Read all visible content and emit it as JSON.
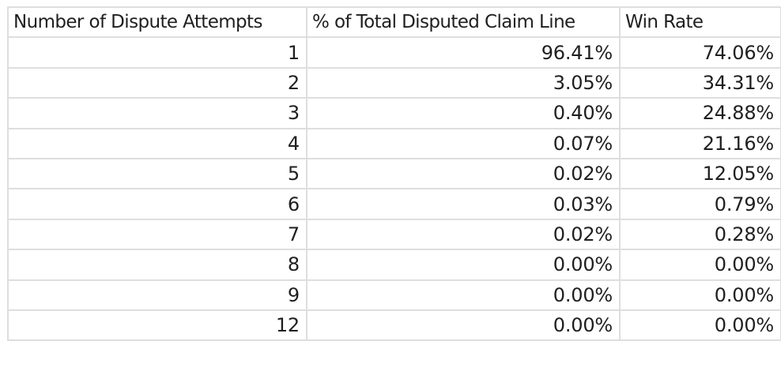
{
  "chart_data": {
    "type": "table",
    "columns": [
      "Number of Dispute Attempts",
      "% of Total Disputed Claim Line",
      "Win Rate"
    ],
    "rows": [
      [
        "1",
        "96.41%",
        "74.06%"
      ],
      [
        "2",
        "3.05%",
        "34.31%"
      ],
      [
        "3",
        "0.40%",
        "24.88%"
      ],
      [
        "4",
        "0.07%",
        "21.16%"
      ],
      [
        "5",
        "0.02%",
        "12.05%"
      ],
      [
        "6",
        "0.03%",
        "0.79%"
      ],
      [
        "7",
        "0.02%",
        "0.28%"
      ],
      [
        "8",
        "0.00%",
        "0.00%"
      ],
      [
        "9",
        "0.00%",
        "0.00%"
      ],
      [
        "12",
        "0.00%",
        "0.00%"
      ]
    ],
    "grid": true
  },
  "colors": {
    "grid": "#dedede",
    "text": "#1f1f1f",
    "background": "#ffffff"
  }
}
